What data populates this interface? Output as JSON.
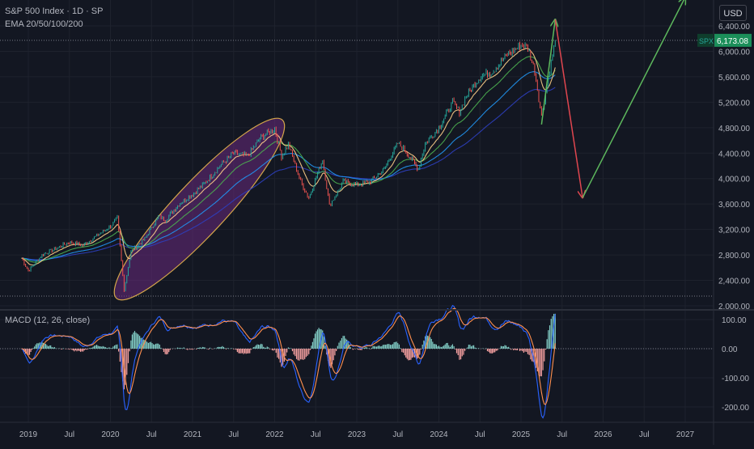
{
  "header": {
    "title": "S&P 500 Index · 1D · SP",
    "indicator": "EMA 20/50/100/200",
    "currency": "USD"
  },
  "price_tag": {
    "symbol": "SPX",
    "value": "6,173.08"
  },
  "macd_label": "MACD (12, 26, close)",
  "colors": {
    "background": "#131722",
    "grid": "#1e222d",
    "candle_up": "#26a69a",
    "candle_down": "#ef5350",
    "ema20": "#ffd08a",
    "ema50": "#4caf50",
    "ema100": "#2196f3",
    "ema200": "#2d3fbf",
    "ellipse_fill": "#6a2a7d",
    "ellipse_stroke": "#d4a64a",
    "arrow_up": "#5db85d",
    "arrow_down": "#e0464f",
    "macd_line": "#2962ff",
    "signal_line": "#ff9050",
    "price_tag_bg": "#1b8f5a"
  },
  "chart_data": [
    {
      "type": "line",
      "title": "S&P 500 Index · 1D · SP",
      "x_ticks": [
        "2019",
        "Jul",
        "2020",
        "Jul",
        "2021",
        "Jul",
        "2022",
        "Jul",
        "2023",
        "Jul",
        "2024",
        "Jul",
        "2025",
        "Jul",
        "2026",
        "Jul",
        "2027"
      ],
      "y_ticks": [
        "6,400.00",
        "6,000.00",
        "5,600.00",
        "5,200.00",
        "4,800.00",
        "4,400.00",
        "4,000.00",
        "3,600.00",
        "3,200.00",
        "2,800.00",
        "2,400.00",
        "2,000.00"
      ],
      "ylim": [
        2000,
        6600
      ],
      "last_value": 6173.08,
      "series": [
        {
          "name": "S&P 500",
          "x": [
            "2018-12",
            "2019-01",
            "2019-03",
            "2019-05",
            "2019-07",
            "2019-09",
            "2019-11",
            "2020-01",
            "2020-02",
            "2020-03",
            "2020-04",
            "2020-06",
            "2020-08",
            "2020-09",
            "2020-11",
            "2021-01",
            "2021-03",
            "2021-05",
            "2021-07",
            "2021-09",
            "2021-11",
            "2022-01",
            "2022-02",
            "2022-03",
            "2022-04",
            "2022-05",
            "2022-06",
            "2022-08",
            "2022-09",
            "2022-10",
            "2022-11",
            "2023-01",
            "2023-03",
            "2023-05",
            "2023-07",
            "2023-08",
            "2023-10",
            "2023-11",
            "2024-01",
            "2024-03",
            "2024-04",
            "2024-05",
            "2024-07",
            "2024-09",
            "2024-11",
            "2025-01",
            "2025-02",
            "2025-03",
            "2025-04",
            "2025-05",
            "2025-06"
          ],
          "values": [
            2750,
            2550,
            2800,
            2900,
            3000,
            2950,
            3100,
            3250,
            3380,
            2250,
            2850,
            3050,
            3400,
            3350,
            3600,
            3750,
            3950,
            4200,
            4400,
            4350,
            4650,
            4790,
            4350,
            4550,
            4200,
            3900,
            3700,
            4300,
            3580,
            3750,
            3950,
            3900,
            3950,
            4150,
            4550,
            4450,
            4150,
            4550,
            4800,
            5200,
            5050,
            5300,
            5600,
            5700,
            5950,
            6100,
            6050,
            5700,
            4980,
            5600,
            6173
          ]
        }
      ],
      "annotations": {
        "projected_path": [
          {
            "date": "2025-06",
            "value": 6500
          },
          {
            "date": "2025-10",
            "value": 3700
          },
          {
            "date": "2027-01",
            "value": 6850
          }
        ]
      }
    },
    {
      "type": "line",
      "title": "MACD (12, 26, close)",
      "y_ticks": [
        "100.00",
        "0.00",
        "-100.00",
        "-200.00"
      ],
      "ylim": [
        -230,
        120
      ]
    }
  ]
}
